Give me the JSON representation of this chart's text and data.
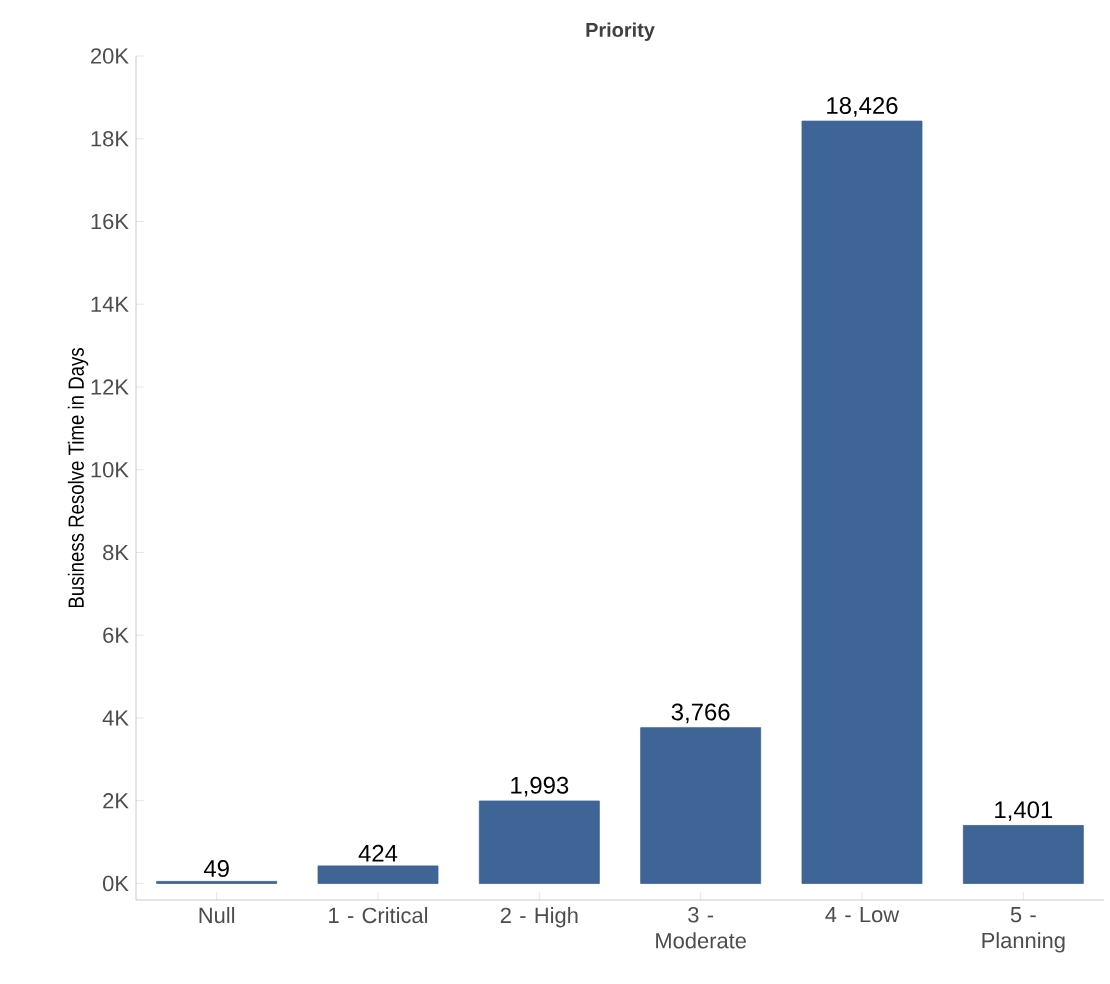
{
  "chart_data": {
    "type": "bar",
    "title": "Priority",
    "ylabel": "Business Resolve Time in Days",
    "categories": [
      "Null",
      "1 - Critical",
      "2 - High",
      "3 - Moderate",
      "4 - Low",
      "5 - Planning"
    ],
    "values": [
      49,
      424,
      1993,
      3766,
      18426,
      1401
    ],
    "value_labels": [
      "49",
      "424",
      "1,993",
      "3,766",
      "18,426",
      "1,401"
    ],
    "color": "#3e6596",
    "ylim": [
      -400,
      20000
    ],
    "yticks": [
      {
        "value": 0,
        "label": "0K"
      },
      {
        "value": 2000,
        "label": "2K"
      },
      {
        "value": 4000,
        "label": "4K"
      },
      {
        "value": 6000,
        "label": "6K"
      },
      {
        "value": 8000,
        "label": "8K"
      },
      {
        "value": 10000,
        "label": "10K"
      },
      {
        "value": 12000,
        "label": "12K"
      },
      {
        "value": 14000,
        "label": "14K"
      },
      {
        "value": 16000,
        "label": "16K"
      },
      {
        "value": 18000,
        "label": "18K"
      },
      {
        "value": 20000,
        "label": "20K"
      }
    ],
    "orientation": "vertical"
  }
}
